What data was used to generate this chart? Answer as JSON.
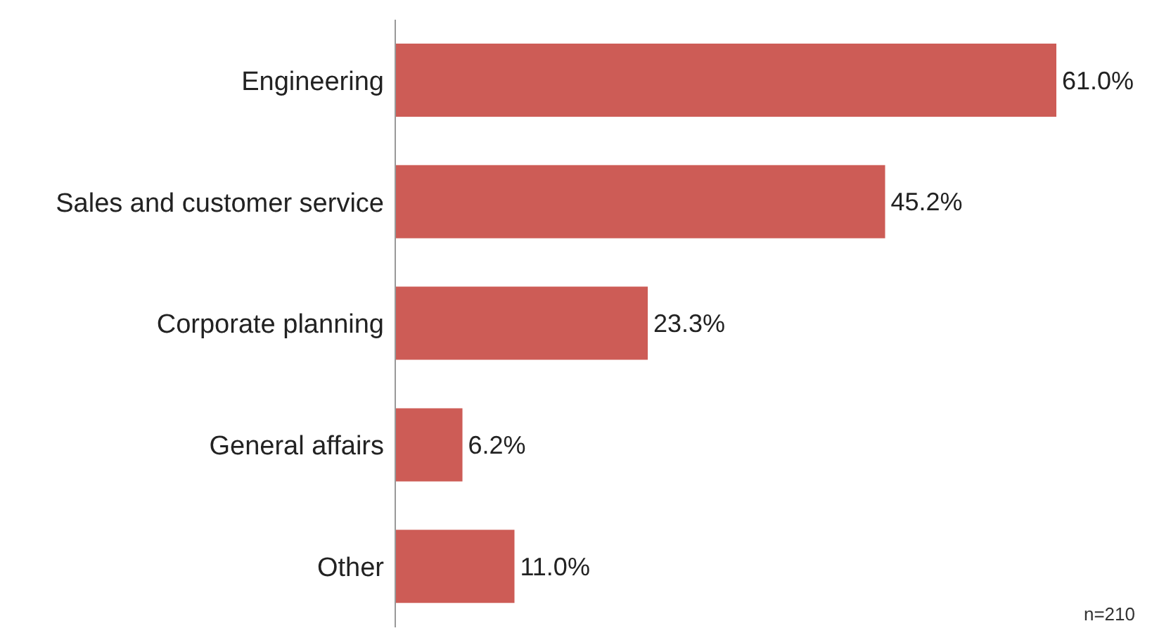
{
  "chart_data": {
    "type": "bar",
    "orientation": "horizontal",
    "categories": [
      "Engineering",
      "Sales and customer service",
      "Corporate planning",
      "General affairs",
      "Other"
    ],
    "values": [
      61.0,
      45.2,
      23.3,
      6.2,
      11.0
    ],
    "value_labels": [
      "61.0%",
      "45.2%",
      "23.3%",
      "6.2%",
      "11.0%"
    ],
    "color": "#cd5c56",
    "tick_labels": "y",
    "grid": false,
    "annotations": [
      "n=210"
    ]
  }
}
